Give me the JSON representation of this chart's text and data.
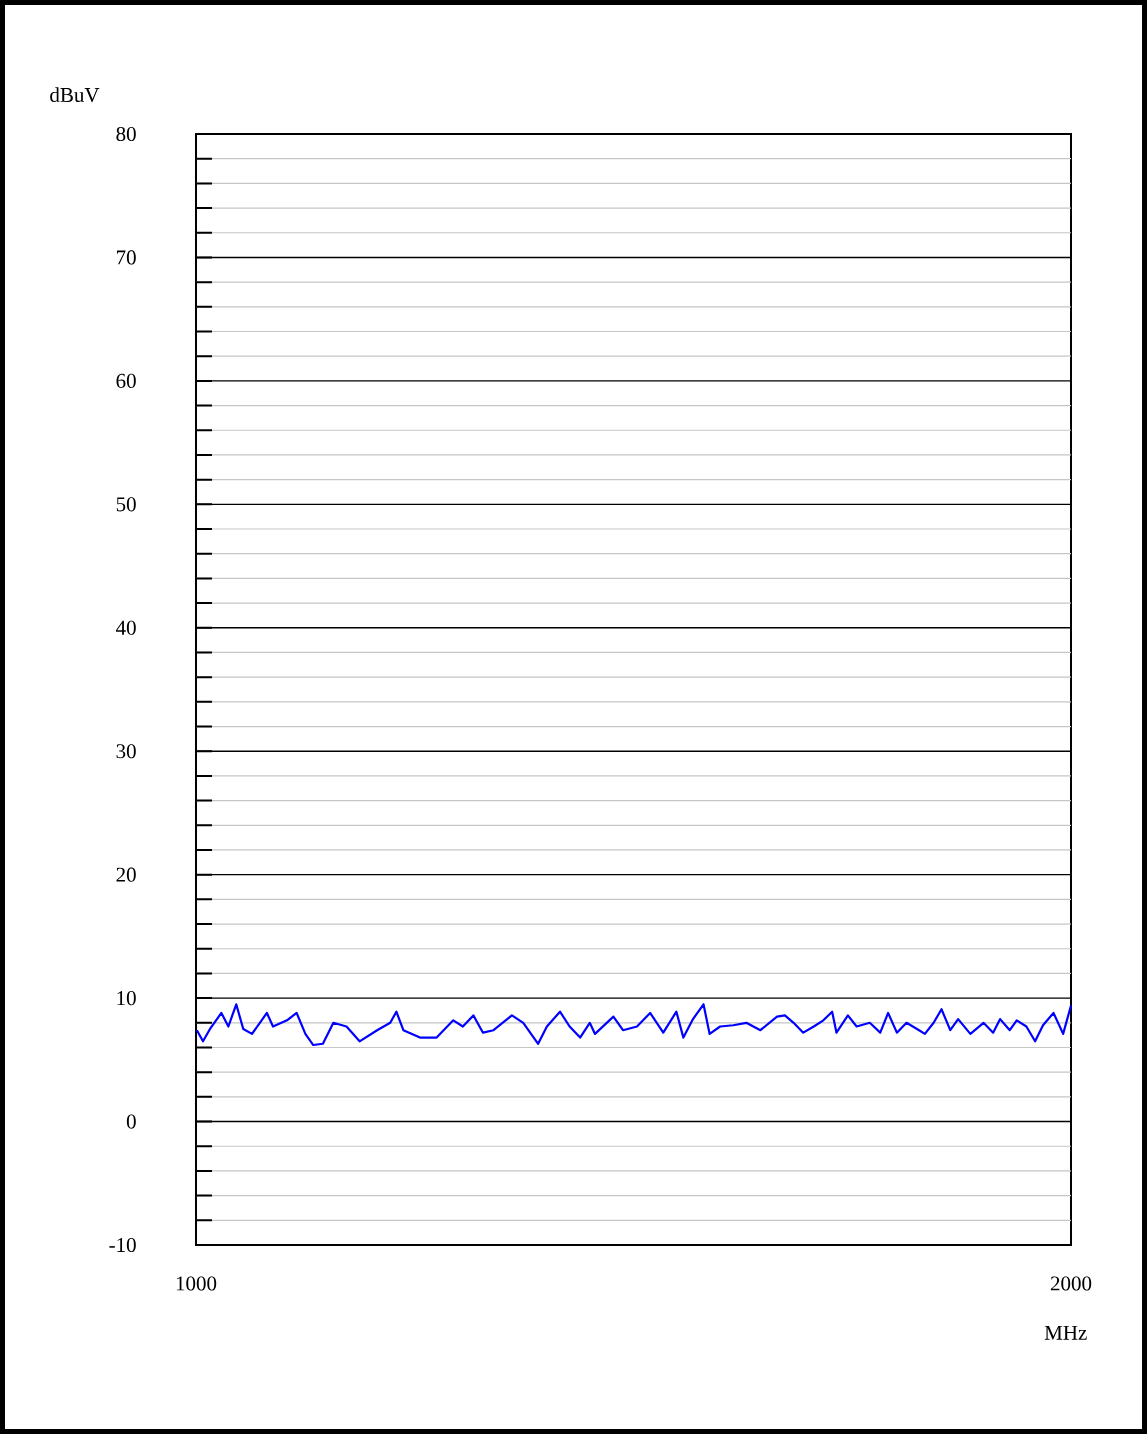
{
  "chart_data": {
    "type": "line",
    "xlabel": "MHz",
    "ylabel": "dBuV",
    "xlim": [
      1000,
      2000
    ],
    "ylim": [
      -10,
      80
    ],
    "xticks": [
      1000,
      2000
    ],
    "yticks": [
      -10,
      {
        "value": -8,
        "label": null
      },
      {
        "value": -6,
        "label": null
      },
      {
        "value": -4,
        "label": null
      },
      {
        "value": -2,
        "label": null
      },
      0,
      {
        "value": 2,
        "label": null
      },
      {
        "value": 4,
        "label": null
      },
      {
        "value": 6,
        "label": null
      },
      {
        "value": 8,
        "label": null
      },
      10,
      {
        "value": 12,
        "label": null
      },
      {
        "value": 14,
        "label": null
      },
      {
        "value": 16,
        "label": null
      },
      {
        "value": 18,
        "label": null
      },
      20,
      {
        "value": 22,
        "label": null
      },
      {
        "value": 24,
        "label": null
      },
      {
        "value": 26,
        "label": null
      },
      {
        "value": 28,
        "label": null
      },
      30,
      {
        "value": 32,
        "label": null
      },
      {
        "value": 34,
        "label": null
      },
      {
        "value": 36,
        "label": null
      },
      {
        "value": 38,
        "label": null
      },
      40,
      {
        "value": 42,
        "label": null
      },
      {
        "value": 44,
        "label": null
      },
      {
        "value": 46,
        "label": null
      },
      {
        "value": 48,
        "label": null
      },
      50,
      {
        "value": 52,
        "label": null
      },
      {
        "value": 54,
        "label": null
      },
      {
        "value": 56,
        "label": null
      },
      {
        "value": 58,
        "label": null
      },
      60,
      {
        "value": 62,
        "label": null
      },
      {
        "value": 64,
        "label": null
      },
      {
        "value": 66,
        "label": null
      },
      {
        "value": 68,
        "label": null
      },
      70,
      {
        "value": 72,
        "label": null
      },
      {
        "value": 74,
        "label": null
      },
      {
        "value": 76,
        "label": null
      },
      {
        "value": 78,
        "label": null
      },
      80
    ],
    "grid": "y",
    "series": [
      {
        "color": "#0000ff",
        "x": [
          1001,
          1008,
          1016,
          1029,
          1037,
          1046,
          1054,
          1064,
          1081,
          1088,
          1104,
          1115,
          1125,
          1134,
          1145,
          1157,
          1172,
          1187,
          1207,
          1222,
          1229,
          1237,
          1256,
          1275,
          1294,
          1305,
          1317,
          1328,
          1340,
          1361,
          1374,
          1391,
          1401,
          1416,
          1427,
          1439,
          1450,
          1456,
          1477,
          1488,
          1504,
          1519,
          1534,
          1549,
          1557,
          1568,
          1580,
          1587,
          1599,
          1614,
          1629,
          1645,
          1664,
          1673,
          1683,
          1694,
          1706,
          1717,
          1727,
          1732,
          1745,
          1755,
          1770,
          1782,
          1791,
          1801,
          1812,
          1824,
          1833,
          1843,
          1852,
          1862,
          1871,
          1885,
          1900,
          1911,
          1919,
          1930,
          1938,
          1949,
          1959,
          1968,
          1980,
          1991,
          2000
        ],
        "values": [
          7.4,
          6.5,
          7.5,
          8.8,
          7.7,
          9.5,
          7.5,
          7.1,
          8.8,
          7.7,
          8.2,
          8.8,
          7.1,
          6.2,
          6.3,
          8.0,
          7.7,
          6.5,
          7.4,
          8.0,
          8.9,
          7.4,
          6.8,
          6.8,
          8.2,
          7.7,
          8.6,
          7.2,
          7.4,
          8.6,
          8.0,
          6.3,
          7.7,
          8.9,
          7.7,
          6.8,
          8.0,
          7.1,
          8.5,
          7.4,
          7.7,
          8.8,
          7.2,
          8.9,
          6.8,
          8.3,
          9.5,
          7.1,
          7.7,
          7.8,
          8.0,
          7.4,
          8.5,
          8.6,
          8.0,
          7.2,
          7.7,
          8.2,
          8.9,
          7.2,
          8.6,
          7.7,
          8.0,
          7.2,
          8.8,
          7.2,
          8.0,
          7.5,
          7.1,
          8.0,
          9.1,
          7.4,
          8.3,
          7.1,
          8.0,
          7.2,
          8.3,
          7.4,
          8.2,
          7.7,
          6.5,
          7.8,
          8.8,
          7.1,
          9.4
        ]
      }
    ]
  }
}
